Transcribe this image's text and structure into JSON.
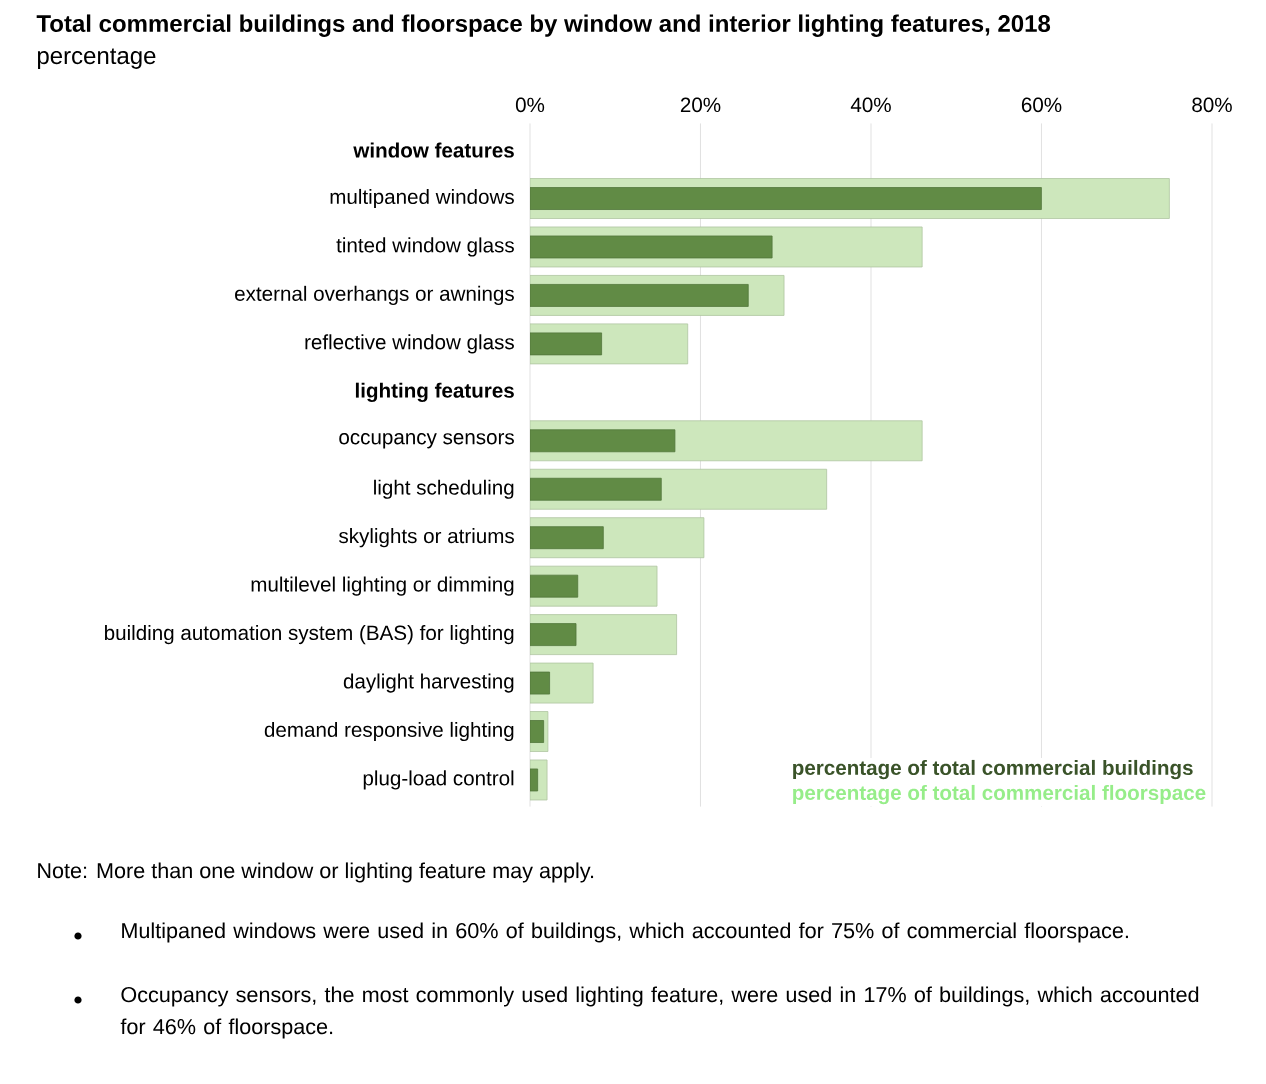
{
  "chart_data": {
    "type": "bar",
    "orientation": "horizontal",
    "title": "Total commercial buildings and floorspace by window and interior lighting features, 2018",
    "subtitle": "percentage",
    "categories": [
      "window features",
      "multipaned windows",
      "tinted window glass",
      "external overhangs or awnings",
      "reflective window glass",
      "lighting features",
      "occupancy sensors",
      "light scheduling",
      "skylights or atriums",
      "multilevel lighting or dimming",
      "building automation system (BAS) for lighting",
      "daylight harvesting",
      "demand responsive lighting",
      "plug-load control"
    ],
    "series": [
      {
        "name": "percentage of total commercial buildings",
        "color": "#618b45",
        "values": [
          null,
          60,
          28.4,
          25.6,
          8.4,
          null,
          17,
          15.4,
          8.6,
          5.6,
          5.4,
          2.3,
          1.6,
          0.9
        ]
      },
      {
        "name": "percentage of total commercial floorspace",
        "color": "#cde7bc",
        "values": [
          null,
          75,
          46,
          29.8,
          18.5,
          null,
          46,
          34.8,
          20.4,
          14.9,
          17.2,
          7.4,
          2.1,
          2.0
        ]
      }
    ],
    "xlim": [
      0,
      80
    ],
    "xticks": [
      {
        "value": 0,
        "label": "0%"
      },
      {
        "value": 20,
        "label": "20%"
      },
      {
        "value": 40,
        "label": "40%"
      },
      {
        "value": 60,
        "label": "60%"
      },
      {
        "value": 80,
        "label": "80%"
      }
    ],
    "grid": "x",
    "legend": "bottom right",
    "annotations": [
      "Note: More than one window or lighting feature may apply.",
      "Multipaned windows were used in 60% of buildings, which accounted for 75% of commercial floorspace.",
      "Occupancy sensors, the most commonly used lighting feature, were used in 17% of buildings, which accounted for 46% of floorspace."
    ]
  }
}
